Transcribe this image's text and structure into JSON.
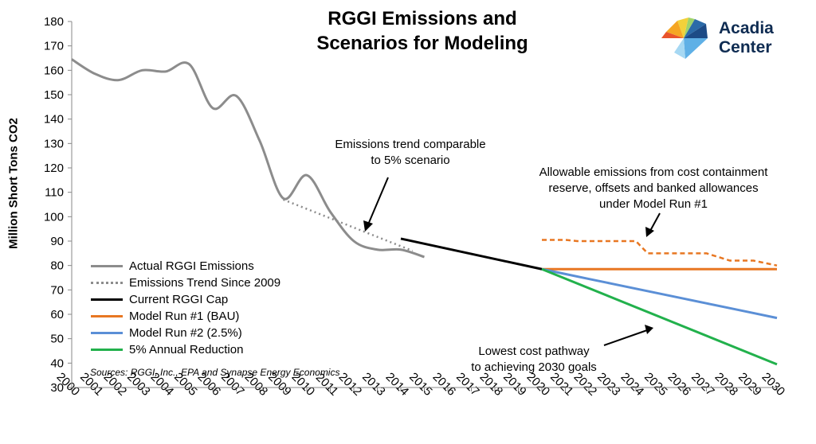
{
  "chart_data": {
    "type": "line",
    "title_line1": "RGGI Emissions and",
    "title_line2": "Scenarios for Modeling",
    "ylabel": "Million Short Tons CO2",
    "xlabel": "",
    "ylim": [
      30,
      180
    ],
    "yticks": [
      30,
      40,
      50,
      60,
      70,
      80,
      90,
      100,
      110,
      120,
      130,
      140,
      150,
      160,
      170,
      180
    ],
    "xlim": [
      2000,
      2030
    ],
    "xticks": [
      "2000",
      "2001",
      "2002",
      "2003",
      "2004",
      "2005",
      "2006",
      "2007",
      "2008",
      "2009",
      "2010",
      "2011",
      "2012",
      "2013",
      "2014",
      "2015",
      "2016",
      "2017",
      "2018",
      "2019",
      "2020",
      "2021",
      "2022",
      "2023",
      "2024",
      "2025",
      "2026",
      "2027",
      "2028",
      "2029",
      "2030"
    ],
    "series": [
      {
        "name": "Actual RGGI Emissions",
        "color": "#8c8c8c",
        "style": "solid",
        "x": [
          2000,
          2001,
          2002,
          2003,
          2004,
          2005,
          2006,
          2007,
          2008,
          2009,
          2010,
          2011,
          2012,
          2013,
          2014,
          2015
        ],
        "y": [
          164.5,
          158.5,
          156,
          160,
          159.5,
          162.5,
          144.5,
          149.5,
          131,
          107.5,
          117,
          102,
          90,
          86.5,
          86.5,
          83.5
        ]
      },
      {
        "name": "Emissions Trend Since 2009",
        "color": "#8c8c8c",
        "style": "dotted",
        "x": [
          2009,
          2014.5
        ],
        "y": [
          107,
          86
        ]
      },
      {
        "name": "Current RGGI Cap",
        "color": "#000000",
        "style": "solid",
        "x": [
          2014,
          2020
        ],
        "y": [
          91,
          78.5
        ]
      },
      {
        "name": "Model Run #1 (BAU)",
        "color": "#e87722",
        "style": "solid",
        "x": [
          2020,
          2030
        ],
        "y": [
          78.5,
          78.5
        ]
      },
      {
        "name": "Model Run #2 (2.5%)",
        "color": "#5b8fd6",
        "style": "solid",
        "x": [
          2020,
          2021,
          2022,
          2023,
          2024,
          2025,
          2026,
          2027,
          2028,
          2029,
          2030
        ],
        "y": [
          78.5,
          76.5,
          74.5,
          72.5,
          70.5,
          68.5,
          66.5,
          64.5,
          62.5,
          60.5,
          58.5
        ]
      },
      {
        "name": "5% Annual Reduction",
        "color": "#22b14c",
        "style": "solid",
        "x": [
          2020,
          2030
        ],
        "y": [
          78.5,
          39.5
        ]
      },
      {
        "name": "Allowable emissions",
        "color": "#e87722",
        "style": "dashed",
        "legend": false,
        "x": [
          2020,
          2020.5,
          2021,
          2021.5,
          2023,
          2024,
          2024.5,
          2026.5,
          2027,
          2028,
          2029,
          2030
        ],
        "y": [
          90.5,
          90.5,
          90.5,
          90,
          90,
          90,
          85,
          85,
          85,
          82,
          82,
          80
        ]
      }
    ],
    "annotations": [
      {
        "lines": [
          "Emissions trend comparable",
          "to 5% scenario"
        ]
      },
      {
        "lines": [
          "Allowable emissions from cost containment",
          "reserve, offsets and banked allowances",
          "under Model Run #1"
        ]
      },
      {
        "lines": [
          "Lowest cost pathway",
          "to achieving 2030 goals"
        ]
      }
    ],
    "source": "Sources: RGGI, Inc., EPA and Synapse Energy Economics"
  },
  "logo": {
    "line1": "Acadia",
    "line2": "Center",
    "text_color": "#0f2c52"
  },
  "colors": {
    "axis": "#888888"
  }
}
